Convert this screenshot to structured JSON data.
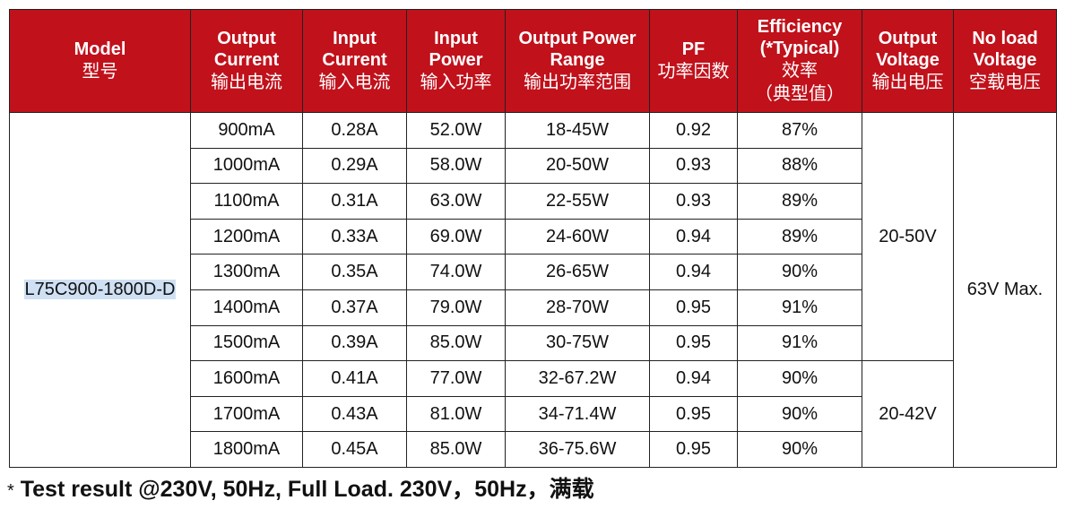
{
  "headers": [
    {
      "en": [
        "Model"
      ],
      "zh": [
        "型号"
      ]
    },
    {
      "en": [
        "Output",
        "Current"
      ],
      "zh": [
        "输出电流"
      ]
    },
    {
      "en": [
        "Input",
        "Current"
      ],
      "zh": [
        "输入电流"
      ]
    },
    {
      "en": [
        "Input",
        "Power"
      ],
      "zh": [
        "输入功率"
      ]
    },
    {
      "en": [
        "Output Power",
        "Range"
      ],
      "zh": [
        "输出功率范围"
      ]
    },
    {
      "en": [
        "PF"
      ],
      "zh": [
        "功率因数"
      ]
    },
    {
      "en": [
        "Efficiency",
        "(*Typical)"
      ],
      "zh": [
        "效率",
        "（典型值）"
      ]
    },
    {
      "en": [
        "Output",
        "Voltage"
      ],
      "zh": [
        "输出电压"
      ]
    },
    {
      "en": [
        "No load",
        "Voltage"
      ],
      "zh": [
        "空载电压"
      ]
    }
  ],
  "model": "L75C900-1800D-D",
  "rows": [
    {
      "output_current": "900mA",
      "input_current": "0.28A",
      "input_power": "52.0W",
      "power_range": "18-45W",
      "pf": "0.92",
      "efficiency": "87%"
    },
    {
      "output_current": "1000mA",
      "input_current": "0.29A",
      "input_power": "58.0W",
      "power_range": "20-50W",
      "pf": "0.93",
      "efficiency": "88%"
    },
    {
      "output_current": "1100mA",
      "input_current": "0.31A",
      "input_power": "63.0W",
      "power_range": "22-55W",
      "pf": "0.93",
      "efficiency": "89%"
    },
    {
      "output_current": "1200mA",
      "input_current": "0.33A",
      "input_power": "69.0W",
      "power_range": "24-60W",
      "pf": "0.94",
      "efficiency": "89%"
    },
    {
      "output_current": "1300mA",
      "input_current": "0.35A",
      "input_power": "74.0W",
      "power_range": "26-65W",
      "pf": "0.94",
      "efficiency": "90%"
    },
    {
      "output_current": "1400mA",
      "input_current": "0.37A",
      "input_power": "79.0W",
      "power_range": "28-70W",
      "pf": "0.95",
      "efficiency": "91%"
    },
    {
      "output_current": "1500mA",
      "input_current": "0.39A",
      "input_power": "85.0W",
      "power_range": "30-75W",
      "pf": "0.95",
      "efficiency": "91%"
    },
    {
      "output_current": "1600mA",
      "input_current": "0.41A",
      "input_power": "77.0W",
      "power_range": "32-67.2W",
      "pf": "0.94",
      "efficiency": "90%"
    },
    {
      "output_current": "1700mA",
      "input_current": "0.43A",
      "input_power": "81.0W",
      "power_range": "34-71.4W",
      "pf": "0.95",
      "efficiency": "90%"
    },
    {
      "output_current": "1800mA",
      "input_current": "0.45A",
      "input_power": "85.0W",
      "power_range": "36-75.6W",
      "pf": "0.95",
      "efficiency": "90%"
    }
  ],
  "output_voltage_groups": [
    "20-50V",
    "20-42V"
  ],
  "no_load_voltage": "63V Max.",
  "footnote": {
    "star": "*",
    "text": " Test result @230V, 50Hz, Full Load.  230V，50Hz，满载"
  },
  "colors": {
    "header_bg": "#c1111b",
    "header_text": "#ffffff",
    "model_highlight": "#cfe0f4"
  }
}
